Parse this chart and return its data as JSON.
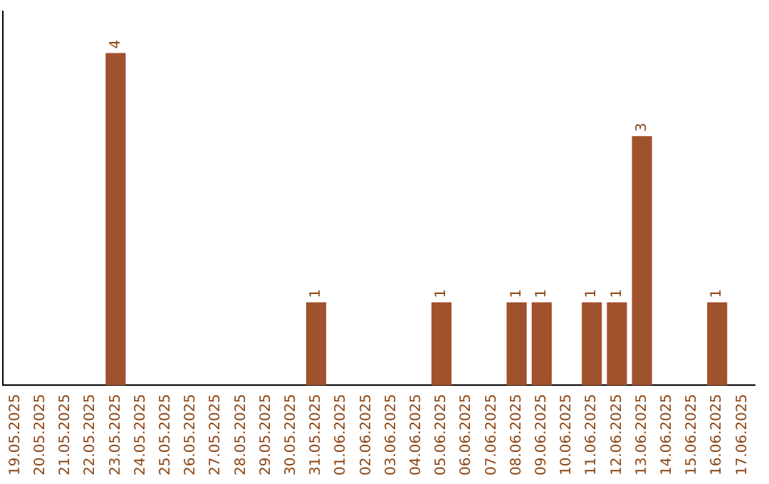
{
  "chart_data": {
    "type": "bar",
    "categories": [
      "19.05.2025",
      "20.05.2025",
      "21.05.2025",
      "22.05.2025",
      "23.05.2025",
      "24.05.2025",
      "25.05.2025",
      "26.05.2025",
      "27.05.2025",
      "28.05.2025",
      "29.05.2025",
      "30.05.2025",
      "31.05.2025",
      "01.06.2025",
      "02.06.2025",
      "03.06.2025",
      "04.06.2025",
      "05.06.2025",
      "06.06.2025",
      "07.06.2025",
      "08.06.2025",
      "09.06.2025",
      "10.06.2025",
      "11.06.2025",
      "12.06.2025",
      "13.06.2025",
      "14.06.2025",
      "15.06.2025",
      "16.06.2025",
      "17.06.2025"
    ],
    "values": [
      0,
      0,
      0,
      0,
      4,
      0,
      0,
      0,
      0,
      0,
      0,
      0,
      1,
      0,
      0,
      0,
      0,
      1,
      0,
      0,
      1,
      1,
      0,
      1,
      1,
      3,
      0,
      0,
      1,
      0
    ],
    "value_labels": [
      null,
      null,
      null,
      null,
      "4",
      null,
      null,
      null,
      null,
      null,
      null,
      null,
      "1",
      null,
      null,
      null,
      null,
      "1",
      null,
      null,
      "1",
      "1",
      null,
      "1",
      "1",
      "3",
      null,
      null,
      "1",
      null
    ],
    "color": "#a0522d",
    "grid": false,
    "legend": false,
    "tick_labels": "x"
  }
}
